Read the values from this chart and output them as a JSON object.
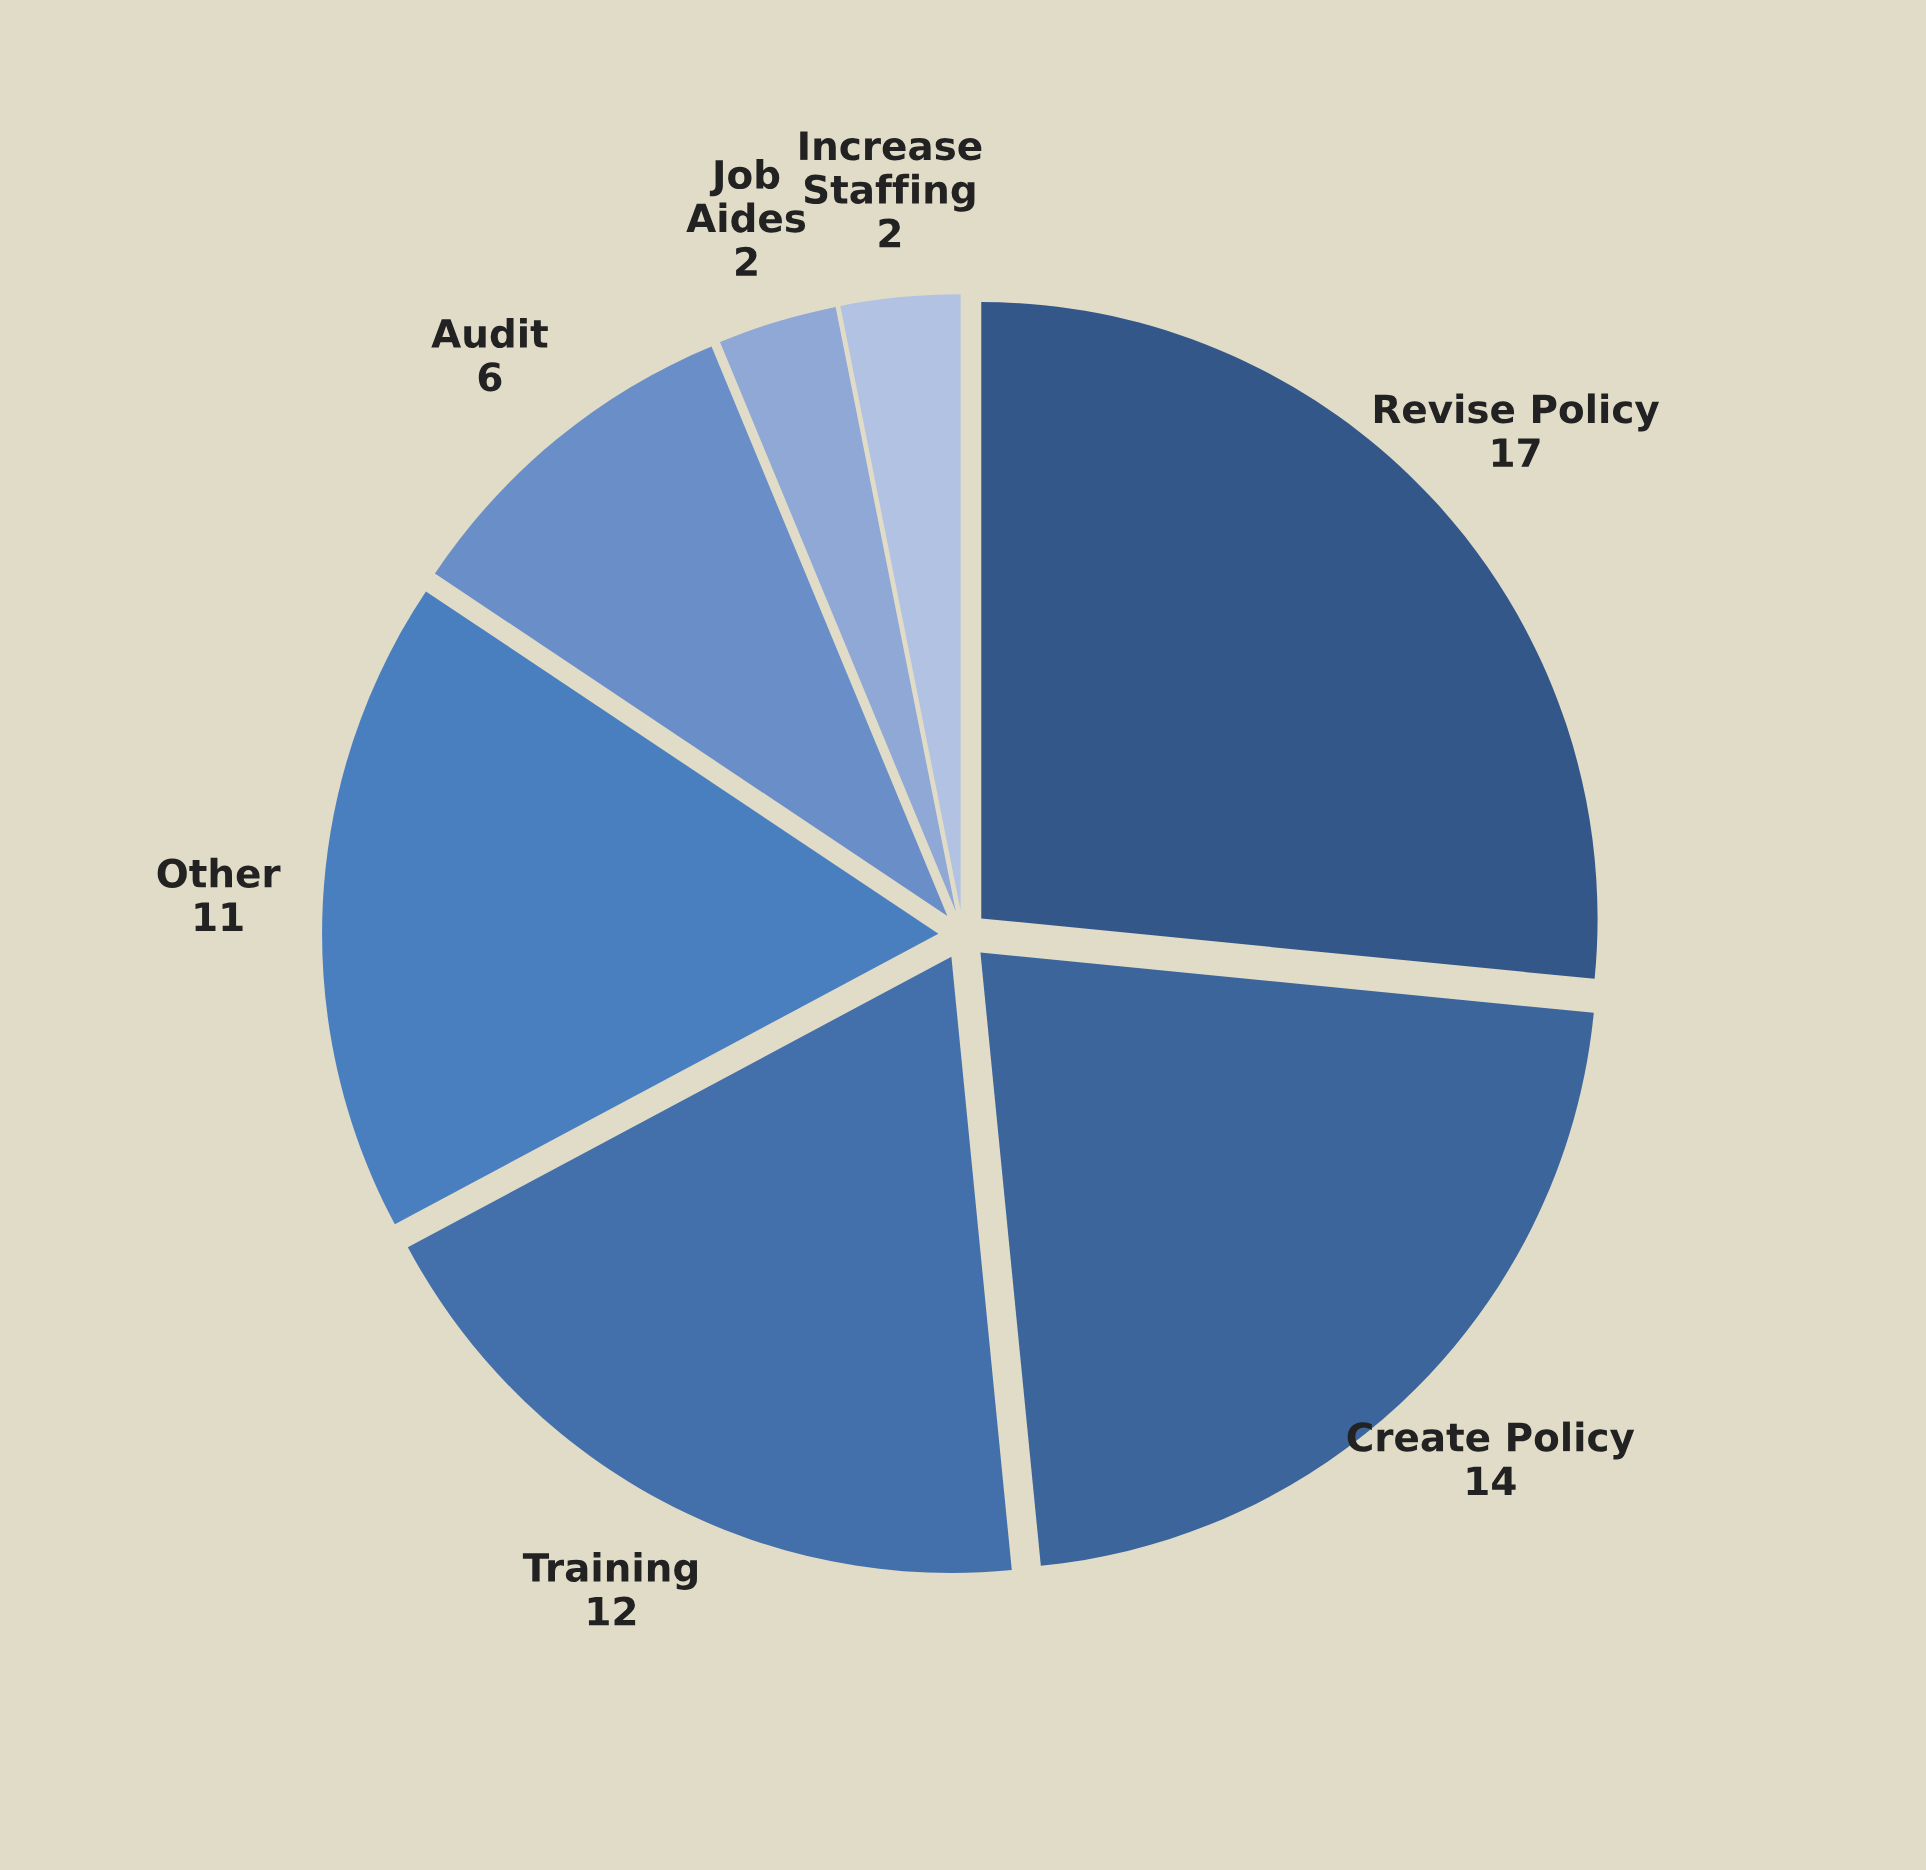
{
  "chart_data": {
    "type": "pie",
    "categories": [
      "Revise Policy",
      "Create Policy",
      "Training",
      "Other",
      "Audit",
      "Job\nAides",
      "Increase\nStaffing"
    ],
    "values": [
      17,
      14,
      12,
      11,
      6,
      2,
      2
    ],
    "colors": [
      "#34578a",
      "#3c659c",
      "#4370aa",
      "#4a7fbf",
      "#6a8fc8",
      "#90a8d6",
      "#b1c2e3"
    ],
    "data_labels": true
  }
}
